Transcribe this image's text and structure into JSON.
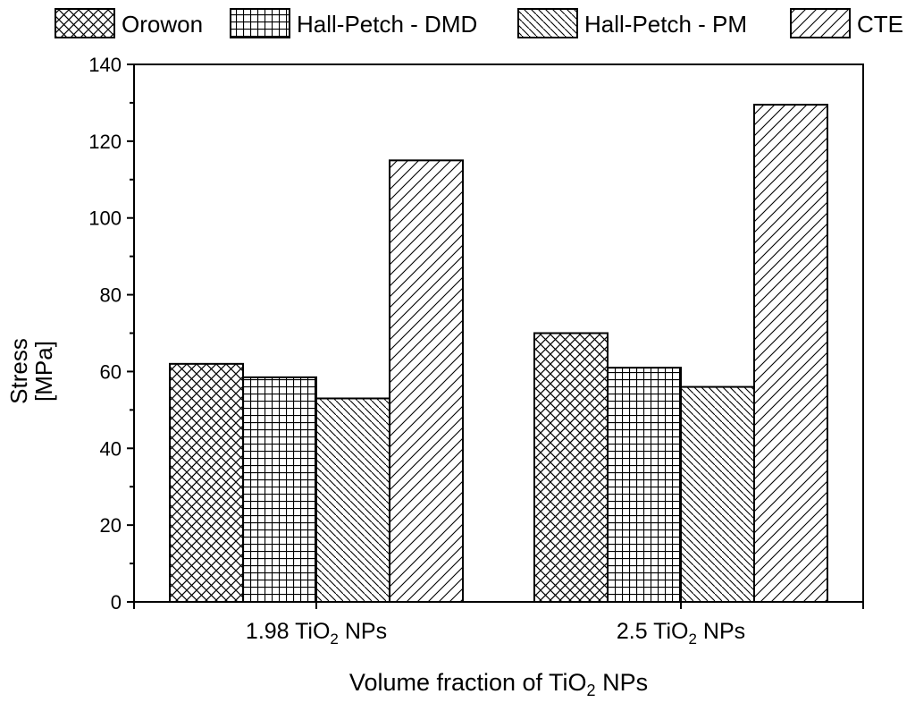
{
  "chart_data": {
    "type": "bar",
    "categories": [
      {
        "main": "1.98 TiO",
        "sub": "2",
        "tail": " NPs"
      },
      {
        "main": "2.5 TiO",
        "sub": "2",
        "tail": " NPs"
      }
    ],
    "series": [
      {
        "name": "Orowon",
        "pattern": "crosshatch",
        "values": [
          62,
          70
        ]
      },
      {
        "name": "Hall-Petch - DMD",
        "pattern": "grid",
        "values": [
          58.5,
          61
        ]
      },
      {
        "name": "Hall-Petch - PM",
        "pattern": "backslash",
        "values": [
          53,
          56
        ]
      },
      {
        "name": "CTE",
        "pattern": "slash",
        "values": [
          115,
          129.5
        ]
      }
    ],
    "xlabel": {
      "main": "Volume fraction of TiO",
      "sub": "2",
      "tail": " NPs"
    },
    "ylabel": {
      "line1": "Stress",
      "line2": "[MPa]"
    },
    "ylim": [
      0,
      140
    ],
    "yticks": [
      0,
      20,
      40,
      60,
      80,
      100,
      120,
      140
    ],
    "legend_position": "top",
    "grid": false
  },
  "colors": {
    "ink": "#000000",
    "background": "#ffffff"
  }
}
